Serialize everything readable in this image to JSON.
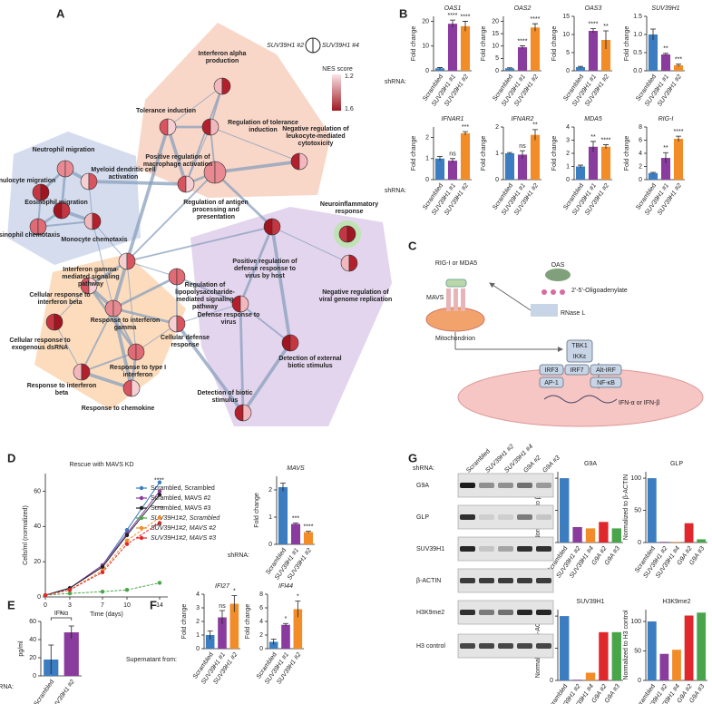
{
  "panel_labels": [
    "A",
    "B",
    "C",
    "D",
    "E",
    "F",
    "G"
  ],
  "network": {
    "legend": {
      "left": "SUV39H1 #2",
      "right": "SUV39H1 #4",
      "title": "NES score",
      "top": "1.2",
      "bottom": "1.6"
    },
    "nodes": [
      {
        "label": "Interferon alpha production"
      },
      {
        "label": "Tolerance induction"
      },
      {
        "label": "Regulation of tolerance induction"
      },
      {
        "label": "Neutrophil migration"
      },
      {
        "label": "Granulocyte migration"
      },
      {
        "label": "Myeloid dendritic cell activation"
      },
      {
        "label": "Eosinophil migration"
      },
      {
        "label": "Eosinophil chemotaxis"
      },
      {
        "label": "Monocyte chemotaxis"
      },
      {
        "label": "Positive regulation of macrophage activation"
      },
      {
        "label": "Negative regulation of leukocyte-mediated cytotoxicity"
      },
      {
        "label": "Regulation of antigen processing and presentation"
      },
      {
        "label": "Neuroinflammatory response"
      },
      {
        "label": "Interferon gamma-mediated signaling pathway"
      },
      {
        "label": "Positive regulation of defense response to virus by host"
      },
      {
        "label": "Regulation of lipopolysaccharide-mediated signaling pathway"
      },
      {
        "label": "Negative regulation of viral genome replication"
      },
      {
        "label": "Cellular response to interferon beta"
      },
      {
        "label": "Defense response to virus"
      },
      {
        "label": "Response to interferon gamma"
      },
      {
        "label": "Cellular response to exogenous dsRNA"
      },
      {
        "label": "Cellular defense response"
      },
      {
        "label": "Detection of external biotic stimulus"
      },
      {
        "label": "Response to type I interferon"
      },
      {
        "label": "Response to interferon beta"
      },
      {
        "label": "Response to chemokine"
      },
      {
        "label": "Detection of biotic stimulus"
      }
    ]
  },
  "pathway": {
    "rig": "RIG-I or MDA5",
    "oas": "OAS",
    "oligo": "2'-5'-Oligoadenylate",
    "mavs": "MAVS",
    "rnase": "RNase L",
    "mito": "Mitochondrion",
    "tbk1": "TBK1",
    "ikk": "IKKε",
    "irf3": "IRF3",
    "irf7": "IRF7",
    "altirf": "Alt-IRF",
    "ap1": "AP-1",
    "nfkb": "NF-κB",
    "ifn": "IFN-α or IFN-β"
  },
  "blot": {
    "shrna_label": "shRNA:",
    "lanes": [
      "Scrambled",
      "SUV39H1 #2",
      "SUV39H1 #4",
      "G9A #2",
      "G9A #3"
    ],
    "rows": [
      "G9A",
      "GLP",
      "SUV39H1",
      "β-ACTIN",
      "H3K9me2",
      "H3 control"
    ]
  },
  "chart_data": [
    {
      "type": "bar",
      "title": "OAS1",
      "y_label": "Fold change",
      "x_label": "shRNA:",
      "categories": [
        "Scrambled",
        "SUV39H1 #1",
        "SUV39H1 #2"
      ],
      "values": [
        1,
        19,
        18
      ],
      "errors": [
        0.3,
        1.5,
        2
      ],
      "significance": [
        "",
        "****",
        "****"
      ],
      "colors": [
        "#3b7dc0",
        "#8a3c9e",
        "#f28c28"
      ],
      "ylim": [
        0,
        22
      ],
      "yticks": [
        0,
        10,
        20
      ]
    },
    {
      "type": "bar",
      "title": "OAS2",
      "y_label": "Fold change",
      "categories": [
        "Scrambled",
        "SUV39H1 #1",
        "SUV39H1 #2"
      ],
      "values": [
        1,
        9.5,
        17.5
      ],
      "errors": [
        0.2,
        0.6,
        1.5
      ],
      "significance": [
        "",
        "****",
        "****"
      ],
      "colors": [
        "#3b7dc0",
        "#8a3c9e",
        "#f28c28"
      ],
      "ylim": [
        0,
        22
      ],
      "yticks": [
        0,
        5,
        10,
        15,
        20
      ]
    },
    {
      "type": "bar",
      "title": "OAS3",
      "y_label": "Fold change",
      "categories": [
        "Scrambled",
        "SUV39H1 #1",
        "SUV39H1 #2"
      ],
      "values": [
        1,
        11,
        8.5
      ],
      "errors": [
        0.2,
        0.6,
        2.5
      ],
      "significance": [
        "",
        "****",
        "**"
      ],
      "colors": [
        "#3b7dc0",
        "#8a3c9e",
        "#f28c28"
      ],
      "ylim": [
        0,
        15
      ],
      "yticks": [
        0,
        5,
        10,
        15
      ]
    },
    {
      "type": "bar",
      "title": "SUV39H1",
      "y_label": "Fold change",
      "categories": [
        "Scrambled",
        "SUV39H1 #1",
        "SUV39H1 #2"
      ],
      "values": [
        1,
        0.45,
        0.15
      ],
      "errors": [
        0.15,
        0.03,
        0.03
      ],
      "significance": [
        "",
        "**",
        "***"
      ],
      "colors": [
        "#3b7dc0",
        "#8a3c9e",
        "#f28c28"
      ],
      "ylim": [
        0,
        1.5
      ],
      "yticks": [
        {
          "value": 0,
          "label": "0.0"
        },
        {
          "value": 0.5,
          "label": "0.5"
        },
        {
          "value": 1,
          "label": "1.0"
        },
        {
          "value": 1.5,
          "label": "1.5"
        }
      ]
    },
    {
      "type": "bar",
      "title": "IFNAR1",
      "y_label": "Fold change",
      "x_label": "shRNA:",
      "categories": [
        "Scrambled",
        "SUV39H1 #1",
        "SUV39H1 #2"
      ],
      "values": [
        1,
        0.9,
        2.2
      ],
      "errors": [
        0.1,
        0.1,
        0.08
      ],
      "significance": [
        "",
        "ns",
        "***"
      ],
      "colors": [
        "#3b7dc0",
        "#8a3c9e",
        "#f28c28"
      ],
      "ylim": [
        0,
        2.5
      ],
      "yticks": [
        0,
        1,
        2
      ]
    },
    {
      "type": "bar",
      "title": "IFNAR2",
      "y_label": "Fold change",
      "categories": [
        "Scrambled",
        "SUV39H1 #1",
        "SUV39H1 #2"
      ],
      "values": [
        1,
        0.95,
        1.7
      ],
      "errors": [
        0.03,
        0.15,
        0.2
      ],
      "significance": [
        "",
        "ns",
        "**"
      ],
      "colors": [
        "#3b7dc0",
        "#8a3c9e",
        "#f28c28"
      ],
      "ylim": [
        0,
        2
      ],
      "yticks": [
        0,
        1,
        2
      ]
    },
    {
      "type": "bar",
      "title": "MDA5",
      "y_label": "Fold change",
      "categories": [
        "Scrambled",
        "SUV39H1 #1",
        "SUV39H1 #2"
      ],
      "values": [
        1,
        2.5,
        2.5
      ],
      "errors": [
        0.1,
        0.4,
        0.15
      ],
      "significance": [
        "",
        "**",
        "****"
      ],
      "colors": [
        "#3b7dc0",
        "#8a3c9e",
        "#f28c28"
      ],
      "ylim": [
        0,
        4
      ],
      "yticks": [
        0,
        1,
        2,
        3,
        4
      ]
    },
    {
      "type": "bar",
      "title": "RIG-I",
      "y_label": "Fold change",
      "categories": [
        "Scrambled",
        "SUV39H1 #1",
        "SUV39H1 #2"
      ],
      "values": [
        1,
        3.3,
        6.2
      ],
      "errors": [
        0.1,
        0.8,
        0.4
      ],
      "significance": [
        "",
        "**",
        "****"
      ],
      "colors": [
        "#3b7dc0",
        "#8a3c9e",
        "#f28c28"
      ],
      "ylim": [
        0,
        8
      ],
      "yticks": [
        0,
        2,
        4,
        6,
        8
      ]
    },
    {
      "type": "line",
      "title": "Rescue with MAVS KD",
      "x_label": "Time (days)",
      "y_label": "Cells/ml (normalized)",
      "x": [
        0,
        3,
        7,
        10,
        14
      ],
      "xlim": [
        0,
        15
      ],
      "xticks": [
        0,
        3,
        7,
        10,
        14
      ],
      "ylim": [
        0,
        70
      ],
      "yticks": [
        0,
        20,
        40,
        60
      ],
      "series": [
        {
          "name": "Scrambled, Scrambled",
          "color": "#3b7dc0",
          "values": [
            1,
            5,
            18,
            38,
            65
          ]
        },
        {
          "name": "Scrambled, MAVS #2",
          "color": "#8a3c9e",
          "values": [
            1,
            5,
            18,
            36,
            60
          ]
        },
        {
          "name": "Scrambled, MAVS #3",
          "color": "#222222",
          "values": [
            1,
            5,
            17,
            35,
            58
          ]
        },
        {
          "name": "SUV39H1#2, Scrambled",
          "color": "#4aa54a",
          "values": [
            1,
            2,
            3,
            4,
            8
          ]
        },
        {
          "name": "SUV39H1#2, MAVS #2",
          "color": "#f28c28",
          "values": [
            1,
            4,
            15,
            32,
            45
          ]
        },
        {
          "name": "SUV39H1#2, MAVS #3",
          "color": "#e0272b",
          "values": [
            1,
            4,
            14,
            30,
            42
          ]
        }
      ],
      "annotations": [
        "****",
        "****",
        "***"
      ]
    },
    {
      "type": "bar",
      "title": "MAVS",
      "y_label": "Fold change",
      "x_label": "shRNA:",
      "categories": [
        "Scrambled",
        "SUV39H1 #1",
        "SUV39H1 #2"
      ],
      "values": [
        2.1,
        0.75,
        0.45
      ],
      "errors": [
        0.15,
        0.03,
        0.03
      ],
      "significance": [
        "",
        "***",
        "****"
      ],
      "colors": [
        "#3b7dc0",
        "#8a3c9e",
        "#f28c28"
      ],
      "ylim": [
        0,
        2.5
      ],
      "yticks": [
        0,
        1,
        2
      ]
    },
    {
      "type": "bar",
      "title": "IFNα",
      "y_label": "pg/ml",
      "x_label": "shRNA:",
      "categories": [
        "Scrambled",
        "SUV39H1 #2"
      ],
      "values": [
        18,
        48
      ],
      "errors": [
        16,
        7
      ],
      "significance": [
        "",
        "*"
      ],
      "colors": [
        "#3b7dc0",
        "#8a3c9e"
      ],
      "ylim": [
        0,
        60
      ],
      "yticks": [
        0,
        20,
        40,
        60
      ]
    },
    {
      "type": "bar",
      "title": "IFI27",
      "y_label": "Fold change",
      "x_label": "Supernatant from:",
      "categories": [
        "Scrambled",
        "SUV39H1 #1",
        "SUV39H1 #2"
      ],
      "values": [
        1,
        2.3,
        3.3
      ],
      "errors": [
        0.3,
        0.5,
        0.6
      ],
      "significance": [
        "",
        "ns",
        "*"
      ],
      "colors": [
        "#3b7dc0",
        "#8a3c9e",
        "#f28c28"
      ],
      "ylim": [
        0,
        4
      ],
      "yticks": [
        0,
        1,
        2,
        3,
        4
      ]
    },
    {
      "type": "bar",
      "title": "IFI44",
      "y_label": "Fold change",
      "categories": [
        "Scrambled",
        "SUV39H1 #1",
        "SUV39H1 #2"
      ],
      "values": [
        1,
        3.5,
        5.8
      ],
      "errors": [
        0.4,
        0.2,
        1.2
      ],
      "significance": [
        "",
        "*",
        "*"
      ],
      "colors": [
        "#3b7dc0",
        "#8a3c9e",
        "#f28c28"
      ],
      "ylim": [
        0,
        8
      ],
      "yticks": [
        0,
        2,
        4,
        6,
        8
      ]
    },
    {
      "type": "bar",
      "title": "G9A",
      "y_label": "Normalized to β-ACTIN",
      "categories": [
        "Scrambled",
        "SUV39H1 #2",
        "SUV39H1 #4",
        "G9A #2",
        "G9A #3"
      ],
      "values": [
        100,
        24,
        22,
        32,
        22
      ],
      "colors": [
        "#3b7dc0",
        "#8a3c9e",
        "#f28c28",
        "#e0272b",
        "#4aa54a"
      ],
      "ylim": [
        0,
        110
      ],
      "yticks": [
        0,
        50,
        100
      ]
    },
    {
      "type": "bar",
      "title": "GLP",
      "y_label": "Normalized to β-ACTIN",
      "categories": [
        "Scrambled",
        "SUV39H1 #2",
        "SUV39H1 #4",
        "G9A #2",
        "G9A #3"
      ],
      "values": [
        100,
        1,
        1,
        30,
        5
      ],
      "colors": [
        "#3b7dc0",
        "#8a3c9e",
        "#f28c28",
        "#e0272b",
        "#4aa54a"
      ],
      "ylim": [
        0,
        110
      ],
      "yticks": [
        0,
        50,
        100
      ]
    },
    {
      "type": "bar",
      "title": "SUV39H1",
      "y_label": "Normalized to β-ACTIN",
      "categories": [
        "Scrambled",
        "SUV39H1 #2",
        "SUV39H1 #4",
        "G9A #2",
        "G9A #3"
      ],
      "values": [
        100,
        1,
        12,
        75,
        75
      ],
      "colors": [
        "#3b7dc0",
        "#8a3c9e",
        "#f28c28",
        "#e0272b",
        "#4aa54a"
      ],
      "ylim": [
        0,
        110
      ],
      "yticks": [
        0,
        50,
        100
      ]
    },
    {
      "type": "bar",
      "title": "H3K9me2",
      "y_label": "Normalized to H3 control",
      "categories": [
        "Scrambled",
        "SUV39H1 #2",
        "SUV39H1 #4",
        "G9A #2",
        "G9A #3"
      ],
      "values": [
        100,
        45,
        52,
        110,
        115
      ],
      "colors": [
        "#3b7dc0",
        "#8a3c9e",
        "#f28c28",
        "#e0272b",
        "#4aa54a"
      ],
      "ylim": [
        0,
        120
      ],
      "yticks": [
        0,
        50,
        100
      ]
    }
  ]
}
